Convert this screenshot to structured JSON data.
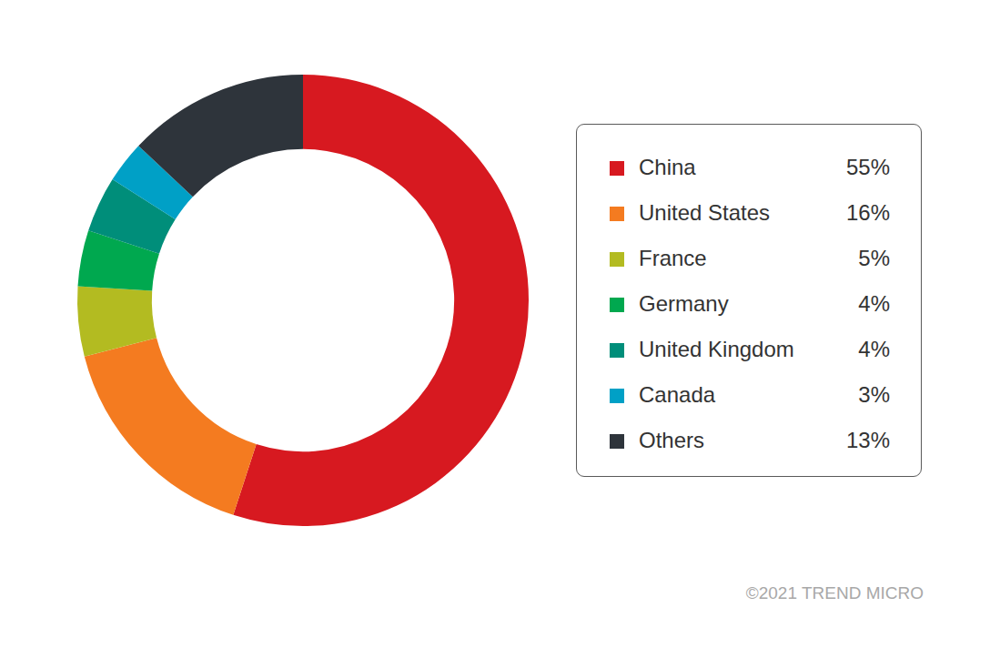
{
  "chart_data": {
    "type": "doughnut",
    "categories": [
      "China",
      "United States",
      "France",
      "Germany",
      "United Kingdom",
      "Canada",
      "Others"
    ],
    "values": [
      55,
      16,
      5,
      4,
      4,
      3,
      13
    ],
    "value_labels": [
      "55%",
      "16%",
      "5%",
      "4%",
      "4%",
      "3%",
      "13%"
    ],
    "colors": [
      "#d71920",
      "#f47b20",
      "#b3bb21",
      "#00a84f",
      "#008e7a",
      "#00a0c6",
      "#2e343b"
    ],
    "legend": "right",
    "annotations": [
      "©2021 TREND MICRO"
    ]
  }
}
